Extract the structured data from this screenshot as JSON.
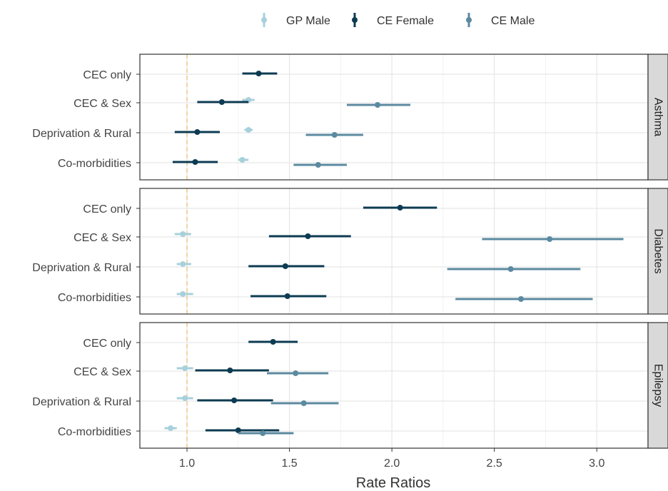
{
  "chart_data": {
    "type": "forest",
    "xlabel": "Rate Ratios",
    "xlim": [
      0.77,
      3.25
    ],
    "xticks": [
      1.0,
      1.5,
      2.0,
      2.5,
      3.0
    ],
    "xtick_labels": [
      "1.0",
      "1.5",
      "2.0",
      "2.5",
      "3.0"
    ],
    "reference_line": 1.0,
    "legend": {
      "position": "top",
      "entries": [
        {
          "name": "GP Male",
          "color": "#a8d0dc"
        },
        {
          "name": "CE Female",
          "color": "#0d3b52"
        },
        {
          "name": "CE Male",
          "color": "#5b8aa0"
        }
      ]
    },
    "categories": [
      "CEC only",
      "CEC & Sex",
      "Deprivation & Rural",
      "Co-morbidities"
    ],
    "facets": [
      {
        "name": "Asthma",
        "series": [
          {
            "name": "GP Male",
            "points": [
              {
                "category": "CEC & Sex",
                "estimate": 1.3,
                "low": 1.27,
                "high": 1.33
              },
              {
                "category": "Deprivation & Rural",
                "estimate": 1.3,
                "low": 1.28,
                "high": 1.32
              },
              {
                "category": "Co-morbidities",
                "estimate": 1.27,
                "low": 1.25,
                "high": 1.3
              }
            ]
          },
          {
            "name": "CE Female",
            "points": [
              {
                "category": "CEC only",
                "estimate": 1.35,
                "low": 1.27,
                "high": 1.44
              },
              {
                "category": "CEC & Sex",
                "estimate": 1.17,
                "low": 1.05,
                "high": 1.3
              },
              {
                "category": "Deprivation & Rural",
                "estimate": 1.05,
                "low": 0.94,
                "high": 1.16
              },
              {
                "category": "Co-morbidities",
                "estimate": 1.04,
                "low": 0.93,
                "high": 1.15
              }
            ]
          },
          {
            "name": "CE Male",
            "points": [
              {
                "category": "CEC & Sex",
                "estimate": 1.93,
                "low": 1.78,
                "high": 2.09
              },
              {
                "category": "Deprivation & Rural",
                "estimate": 1.72,
                "low": 1.58,
                "high": 1.86
              },
              {
                "category": "Co-morbidities",
                "estimate": 1.64,
                "low": 1.52,
                "high": 1.78
              }
            ]
          }
        ]
      },
      {
        "name": "Diabetes",
        "series": [
          {
            "name": "GP Male",
            "points": [
              {
                "category": "CEC & Sex",
                "estimate": 0.98,
                "low": 0.94,
                "high": 1.02
              },
              {
                "category": "Deprivation & Rural",
                "estimate": 0.98,
                "low": 0.95,
                "high": 1.02
              },
              {
                "category": "Co-morbidities",
                "estimate": 0.98,
                "low": 0.95,
                "high": 1.03
              }
            ]
          },
          {
            "name": "CE Female",
            "points": [
              {
                "category": "CEC only",
                "estimate": 2.04,
                "low": 1.86,
                "high": 2.22
              },
              {
                "category": "CEC & Sex",
                "estimate": 1.59,
                "low": 1.4,
                "high": 1.8
              },
              {
                "category": "Deprivation & Rural",
                "estimate": 1.48,
                "low": 1.3,
                "high": 1.67
              },
              {
                "category": "Co-morbidities",
                "estimate": 1.49,
                "low": 1.31,
                "high": 1.68
              }
            ]
          },
          {
            "name": "CE Male",
            "points": [
              {
                "category": "CEC & Sex",
                "estimate": 2.77,
                "low": 2.44,
                "high": 3.13
              },
              {
                "category": "Deprivation & Rural",
                "estimate": 2.58,
                "low": 2.27,
                "high": 2.92
              },
              {
                "category": "Co-morbidities",
                "estimate": 2.63,
                "low": 2.31,
                "high": 2.98
              }
            ]
          }
        ]
      },
      {
        "name": "Epilepsy",
        "series": [
          {
            "name": "GP Male",
            "points": [
              {
                "category": "CEC & Sex",
                "estimate": 0.99,
                "low": 0.95,
                "high": 1.03
              },
              {
                "category": "Deprivation & Rural",
                "estimate": 0.99,
                "low": 0.95,
                "high": 1.03
              },
              {
                "category": "Co-morbidities",
                "estimate": 0.92,
                "low": 0.89,
                "high": 0.95
              }
            ]
          },
          {
            "name": "CE Female",
            "points": [
              {
                "category": "CEC only",
                "estimate": 1.42,
                "low": 1.3,
                "high": 1.54
              },
              {
                "category": "CEC & Sex",
                "estimate": 1.21,
                "low": 1.04,
                "high": 1.4
              },
              {
                "category": "Deprivation & Rural",
                "estimate": 1.23,
                "low": 1.05,
                "high": 1.42
              },
              {
                "category": "Co-morbidities",
                "estimate": 1.25,
                "low": 1.09,
                "high": 1.45
              }
            ]
          },
          {
            "name": "CE Male",
            "points": [
              {
                "category": "CEC & Sex",
                "estimate": 1.53,
                "low": 1.39,
                "high": 1.69
              },
              {
                "category": "Deprivation & Rural",
                "estimate": 1.57,
                "low": 1.41,
                "high": 1.74
              },
              {
                "category": "Co-morbidities",
                "estimate": 1.37,
                "low": 1.25,
                "high": 1.52
              }
            ]
          }
        ]
      }
    ]
  }
}
